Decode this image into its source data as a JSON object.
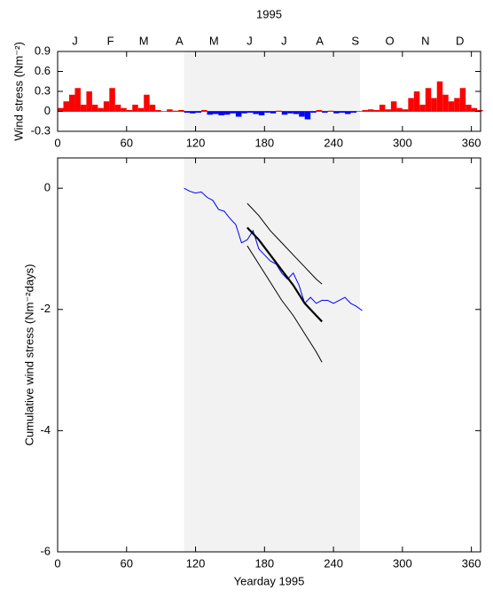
{
  "chart_data": [
    {
      "type": "bar",
      "title": "1995",
      "ylabel": "Wind stress (Nm⁻²)",
      "positive_color": "#ff0000",
      "negative_color": "#0000ff",
      "shade_color": "#f2f2f2",
      "shaded": [
        110,
        263
      ],
      "x": [
        0,
        5,
        10,
        15,
        20,
        25,
        30,
        35,
        40,
        45,
        50,
        55,
        60,
        65,
        70,
        75,
        80,
        85,
        90,
        95,
        100,
        105,
        110,
        115,
        120,
        125,
        130,
        135,
        140,
        145,
        150,
        155,
        160,
        165,
        170,
        175,
        180,
        185,
        190,
        195,
        200,
        205,
        210,
        215,
        220,
        225,
        230,
        235,
        240,
        245,
        250,
        255,
        260,
        265,
        270,
        275,
        280,
        285,
        290,
        295,
        300,
        305,
        310,
        315,
        320,
        325,
        330,
        335,
        340,
        345,
        350,
        355,
        360,
        365
      ],
      "values": [
        0.05,
        0.15,
        0.25,
        0.35,
        0.1,
        0.3,
        0.1,
        0.05,
        0.15,
        0.35,
        0.1,
        0.05,
        0.02,
        0.1,
        0.05,
        0.25,
        0.1,
        0.02,
        0.0,
        0.03,
        0.01,
        0.02,
        -0.02,
        -0.03,
        -0.02,
        0.02,
        -0.05,
        -0.04,
        -0.06,
        -0.05,
        -0.03,
        -0.08,
        -0.03,
        -0.02,
        -0.04,
        -0.06,
        -0.02,
        -0.03,
        0.01,
        -0.05,
        -0.03,
        -0.04,
        -0.08,
        -0.12,
        -0.02,
        0.02,
        -0.02,
        0.01,
        -0.03,
        -0.02,
        -0.04,
        -0.02,
        0.0,
        0.02,
        0.03,
        0.02,
        0.1,
        0.03,
        0.15,
        0.05,
        0.03,
        0.2,
        0.3,
        0.1,
        0.35,
        0.2,
        0.45,
        0.25,
        0.15,
        0.2,
        0.35,
        0.1,
        0.05,
        0.02
      ],
      "bar_width": 5,
      "xlim": [
        0,
        368
      ],
      "xticks": [
        0,
        60,
        120,
        180,
        240,
        300,
        360
      ],
      "month_ticks": [
        {
          "value": 15,
          "label": "J"
        },
        {
          "value": 46,
          "label": "F"
        },
        {
          "value": 75,
          "label": "M"
        },
        {
          "value": 106,
          "label": "A"
        },
        {
          "value": 136,
          "label": "M"
        },
        {
          "value": 167,
          "label": "J"
        },
        {
          "value": 197,
          "label": "J"
        },
        {
          "value": 228,
          "label": "A"
        },
        {
          "value": 259,
          "label": "S"
        },
        {
          "value": 289,
          "label": "O"
        },
        {
          "value": 320,
          "label": "N"
        },
        {
          "value": 350,
          "label": "D"
        }
      ],
      "ylim": [
        -0.3,
        0.9
      ],
      "yticks": [
        -0.3,
        0,
        0.3,
        0.6,
        0.9
      ]
    },
    {
      "type": "line",
      "xlabel": "Yearday 1995",
      "ylabel": "Cumulative wind stress (Nm⁻²days)",
      "shade_color": "#f2f2f2",
      "shaded": [
        110,
        263
      ],
      "xlim": [
        0,
        368
      ],
      "xticks": [
        0,
        60,
        120,
        180,
        240,
        300,
        360
      ],
      "ylim": [
        -6,
        0.5
      ],
      "yticks": [
        0,
        -2,
        -4,
        -6
      ],
      "series": [
        {
          "color": "#0000ff",
          "width": 1,
          "x": [
            110,
            115,
            120,
            125,
            130,
            135,
            140,
            145,
            150,
            155,
            160,
            165,
            170,
            175,
            180,
            185,
            190,
            195,
            200,
            205,
            210,
            215,
            220,
            225,
            230,
            235,
            240,
            245,
            250,
            255,
            260,
            265
          ],
          "values": [
            0,
            -0.05,
            -0.08,
            -0.06,
            -0.15,
            -0.2,
            -0.35,
            -0.38,
            -0.5,
            -0.6,
            -0.9,
            -0.85,
            -0.7,
            -1.0,
            -1.1,
            -1.2,
            -1.25,
            -1.4,
            -1.5,
            -1.4,
            -1.6,
            -1.9,
            -1.8,
            -1.9,
            -1.85,
            -1.85,
            -1.9,
            -1.85,
            -1.8,
            -1.9,
            -1.95,
            -2.02
          ]
        },
        {
          "color": "#000000",
          "width": 2.2,
          "x": [
            165,
            175,
            185,
            195,
            205,
            215,
            225,
            230
          ],
          "values": [
            -0.65,
            -0.85,
            -1.1,
            -1.35,
            -1.6,
            -1.9,
            -2.1,
            -2.2
          ]
        },
        {
          "color": "#000000",
          "width": 1,
          "x": [
            165,
            175,
            185,
            195,
            205,
            215,
            225,
            230
          ],
          "values": [
            -0.25,
            -0.45,
            -0.7,
            -0.9,
            -1.1,
            -1.3,
            -1.5,
            -1.58
          ]
        },
        {
          "color": "#000000",
          "width": 1,
          "x": [
            165,
            175,
            185,
            195,
            205,
            215,
            225,
            230
          ],
          "values": [
            -0.95,
            -1.25,
            -1.55,
            -1.85,
            -2.1,
            -2.4,
            -2.7,
            -2.87
          ]
        }
      ]
    }
  ]
}
